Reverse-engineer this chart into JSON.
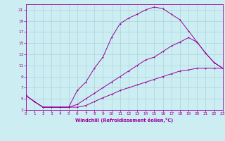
{
  "xlabel": "Windchill (Refroidissement éolien,°C)",
  "bg_color": "#cceef2",
  "grid_color": "#aad4da",
  "line_color": "#990099",
  "xlim": [
    0,
    23
  ],
  "ylim": [
    3,
    22
  ],
  "xticks": [
    0,
    1,
    2,
    3,
    4,
    5,
    6,
    7,
    8,
    9,
    10,
    11,
    12,
    13,
    14,
    15,
    16,
    17,
    18,
    19,
    20,
    21,
    22,
    23
  ],
  "yticks": [
    3,
    5,
    7,
    9,
    11,
    13,
    15,
    17,
    19,
    21
  ],
  "curve1_x": [
    0,
    1,
    2,
    3,
    4,
    5,
    6,
    7,
    8,
    9,
    10,
    11,
    12,
    13,
    14,
    15,
    16,
    17,
    18,
    19,
    20,
    21,
    22,
    23
  ],
  "curve1_y": [
    5.6,
    4.5,
    3.5,
    3.5,
    3.5,
    3.5,
    6.5,
    8.0,
    10.5,
    12.5,
    16.0,
    18.5,
    19.5,
    20.2,
    21.0,
    21.5,
    21.2,
    20.2,
    19.2,
    17.2,
    15.2,
    13.2,
    11.5,
    10.5
  ],
  "curve2_x": [
    0,
    1,
    2,
    3,
    4,
    5,
    6,
    7,
    8,
    9,
    10,
    11,
    12,
    13,
    14,
    15,
    16,
    17,
    18,
    19,
    20,
    21,
    22,
    23
  ],
  "curve2_y": [
    5.6,
    4.5,
    3.5,
    3.5,
    3.5,
    3.5,
    4.0,
    5.0,
    6.0,
    7.0,
    8.0,
    9.0,
    10.0,
    11.0,
    12.0,
    12.5,
    13.5,
    14.5,
    15.2,
    16.0,
    15.2,
    13.2,
    11.5,
    10.5
  ],
  "curve3_x": [
    0,
    1,
    2,
    3,
    4,
    5,
    6,
    7,
    8,
    9,
    10,
    11,
    12,
    13,
    14,
    15,
    16,
    17,
    18,
    19,
    20,
    21,
    22,
    23
  ],
  "curve3_y": [
    5.6,
    4.5,
    3.5,
    3.5,
    3.5,
    3.5,
    3.5,
    3.8,
    4.5,
    5.2,
    5.8,
    6.5,
    7.0,
    7.5,
    8.0,
    8.5,
    9.0,
    9.5,
    10.0,
    10.2,
    10.5,
    10.5,
    10.5,
    10.5
  ]
}
